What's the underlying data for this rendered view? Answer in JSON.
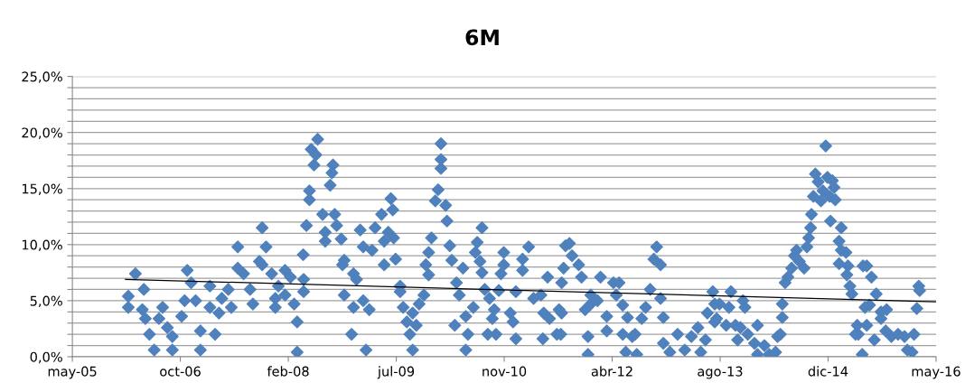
{
  "chart_data": {
    "type": "scatter",
    "title": "6M",
    "xlim": [
      "2005-05-31",
      "2016-05-13"
    ],
    "xticks": [
      {
        "value": "2005-05-31",
        "label": "may-05"
      },
      {
        "value": "2006-10-13",
        "label": "oct-06"
      },
      {
        "value": "2008-02-25",
        "label": "feb-08"
      },
      {
        "value": "2009-07-09",
        "label": "jul-09"
      },
      {
        "value": "2010-11-21",
        "label": "nov-10"
      },
      {
        "value": "2012-04-04",
        "label": "abr-12"
      },
      {
        "value": "2013-08-17",
        "label": "ago-13"
      },
      {
        "value": "2014-12-30",
        "label": "dic-14"
      },
      {
        "value": "2016-05-13",
        "label": "may-16"
      }
    ],
    "ylim": [
      0,
      25
    ],
    "yticks": [
      {
        "value": 0,
        "label": "0,0%"
      },
      {
        "value": 1,
        "label": null
      },
      {
        "value": 2,
        "label": null
      },
      {
        "value": 3,
        "label": null
      },
      {
        "value": 4,
        "label": null
      },
      {
        "value": 5,
        "label": "5,0%"
      },
      {
        "value": 6,
        "label": null
      },
      {
        "value": 7,
        "label": null
      },
      {
        "value": 8,
        "label": null
      },
      {
        "value": 9,
        "label": null
      },
      {
        "value": 10,
        "label": "10,0%"
      },
      {
        "value": 11,
        "label": null
      },
      {
        "value": 12,
        "label": null
      },
      {
        "value": 13,
        "label": null
      },
      {
        "value": 14,
        "label": null
      },
      {
        "value": 15,
        "label": "15,0%"
      },
      {
        "value": 16,
        "label": null
      },
      {
        "value": 17,
        "label": null
      },
      {
        "value": 18,
        "label": null
      },
      {
        "value": 19,
        "label": null
      },
      {
        "value": 20,
        "label": "20,0%"
      },
      {
        "value": 21,
        "label": null
      },
      {
        "value": 22,
        "label": null
      },
      {
        "value": 23,
        "label": null
      },
      {
        "value": 24,
        "label": null
      },
      {
        "value": 25,
        "label": "25,0%"
      }
    ],
    "grid": "y",
    "legend": false,
    "series": [
      {
        "color": "#4f81bd",
        "marker": "diamond",
        "x": [
          "2006-03-19",
          "2006-04-27",
          "2006-02-14",
          "2006-02-14",
          "2006-04-20",
          "2006-05-04",
          "2006-05-23",
          "2006-06-14",
          "2006-07-06",
          "2006-07-23",
          "2006-08-14",
          "2006-09-06",
          "2006-09-06",
          "2006-10-19",
          "2006-11-02",
          "2006-11-14",
          "2006-12-02",
          "2006-12-23",
          "2007-01-14",
          "2007-01-14",
          "2007-02-27",
          "2007-02-27",
          "2007-03-23",
          "2007-04-10",
          "2007-04-23",
          "2007-05-23",
          "2007-06-06",
          "2007-07-06",
          "2007-07-06",
          "2007-08-02",
          "2007-09-01",
          "2007-09-14",
          "2007-10-14",
          "2007-10-27",
          "2007-11-14",
          "2007-10-27",
          "2007-12-10",
          "2008-02-10",
          "2008-03-06",
          "2008-01-10",
          "2008-02-10",
          "2007-12-27",
          "2007-12-27",
          "2008-03-23",
          "2008-05-06",
          "2008-05-06",
          "2008-05-04",
          "2008-04-06",
          "2008-04-06",
          "2008-05-19",
          "2008-06-02",
          "2008-06-02",
          "2008-06-10",
          "2008-07-10",
          "2008-07-02",
          "2008-06-23",
          "2008-09-19",
          "2008-09-14",
          "2008-09-06",
          "2008-08-02",
          "2008-08-14",
          "2008-08-14",
          "2008-09-27",
          "2008-10-06",
          "2008-10-27",
          "2008-11-10",
          "2008-11-02",
          "2008-12-23",
          "2009-01-06",
          "2008-11-10",
          "2008-12-23",
          "2009-02-06",
          "2009-03-06",
          "2008-12-14",
          "2009-02-19",
          "2009-01-23",
          "2009-02-06",
          "2009-03-19",
          "2009-04-02",
          "2009-05-02",
          "2009-06-14",
          "2009-06-23",
          "2009-06-02",
          "2009-06-27",
          "2009-05-14",
          "2009-05-14",
          "2009-07-06",
          "2009-07-27",
          "2009-07-27",
          "2009-08-10",
          "2009-08-27",
          "2009-09-10",
          "2009-09-23",
          "2009-09-23",
          "2009-10-10",
          "2009-10-23",
          "2009-11-14",
          "2009-12-19",
          "2009-12-06",
          "2009-11-23",
          "2009-12-06",
          "2010-01-06",
          "2010-01-19",
          "2010-02-01",
          "2010-02-01",
          "2010-02-01",
          "2010-02-23",
          "2010-03-01",
          "2010-03-14",
          "2010-03-23",
          "2010-04-14",
          "2010-04-27",
          "2010-04-06",
          "2010-05-27",
          "2010-05-14",
          "2010-05-27",
          "2010-06-06",
          "2010-07-01",
          "2010-08-10",
          "2010-07-19",
          "2010-07-10",
          "2010-08-01",
          "2010-08-10",
          "2010-08-23",
          "2010-09-14",
          "2010-09-06",
          "2010-10-06",
          "2010-09-27",
          "2010-10-14",
          "2010-11-19",
          "2010-11-19",
          "2010-11-06",
          "2010-10-27",
          "2010-12-19",
          "2011-01-01",
          "2011-01-14",
          "2011-01-14",
          "2011-02-14",
          "2011-02-14",
          "2011-03-14",
          "2011-04-06",
          "2011-05-10",
          "2011-06-10",
          "2011-05-23",
          "2011-06-19",
          "2011-07-23",
          "2011-05-19",
          "2011-08-02",
          "2011-08-23",
          "2011-09-01",
          "2011-09-19",
          "2011-10-01",
          "2011-11-01",
          "2011-08-14",
          "2011-11-14",
          "2011-08-14",
          "2011-08-10",
          "2011-12-01",
          "2011-12-27",
          "2011-12-27",
          "2012-02-10",
          "2012-01-27",
          "2011-12-14",
          "2011-12-14",
          "2012-03-10",
          "2012-03-10",
          "2012-04-10",
          "2012-05-06",
          "2012-04-23",
          "2012-05-23",
          "2012-06-14",
          "2012-05-23",
          "2012-07-06",
          "2012-07-19",
          "2012-06-06",
          "2012-07-27",
          "2012-09-27",
          "2012-09-06",
          "2012-08-19",
          "2012-10-27",
          "2012-10-14",
          "2012-11-14",
          "2012-11-14",
          "2012-11-27",
          "2012-11-27",
          "2012-12-27",
          "2013-02-01",
          "2013-03-06",
          "2013-04-06",
          "2013-05-06",
          "2013-05-19",
          "2013-06-10",
          "2013-06-19",
          "2013-07-14",
          "2013-07-23",
          "2013-07-23",
          "2013-08-14",
          "2013-08-01",
          "2013-10-06",
          "2013-09-27",
          "2013-09-14",
          "2013-12-01",
          "2013-12-10",
          "2013-10-27",
          "2013-11-19",
          "2013-11-06",
          "2013-12-23",
          "2014-02-06",
          "2014-01-23",
          "2014-02-06",
          "2014-03-10",
          "2014-04-01",
          "2014-05-01",
          "2014-05-10",
          "2014-05-23",
          "2014-06-01",
          "2014-06-01",
          "2014-06-14",
          "2014-06-27",
          "2014-07-14",
          "2014-07-27",
          "2014-08-06",
          "2014-08-19",
          "2014-09-10",
          "2014-09-23",
          "2014-10-01",
          "2014-10-10",
          "2014-10-14",
          "2014-10-23",
          "2014-11-01",
          "2014-11-14",
          "2014-11-27",
          "2014-12-06",
          "2014-12-19",
          "2014-12-27",
          "2015-01-06",
          "2015-01-27",
          "2015-02-01",
          "2015-01-19",
          "2015-01-10",
          "2015-03-01",
          "2015-02-19",
          "2015-03-01",
          "2015-03-23",
          "2015-02-19",
          "2015-04-01",
          "2015-03-27",
          "2015-04-10",
          "2015-04-19",
          "2015-06-10",
          "2015-06-19",
          "2015-05-14",
          "2015-05-19",
          "2015-06-06",
          "2015-06-27",
          "2015-07-19",
          "2015-08-10",
          "2015-07-10",
          "2015-09-01",
          "2015-09-27",
          "2015-09-01",
          "2015-06-27",
          "2015-05-06",
          "2015-08-01",
          "2015-09-23",
          "2015-10-19",
          "2015-11-19",
          "2015-12-19",
          "2016-01-01",
          "2016-01-23",
          "2016-02-01",
          "2016-02-14",
          "2016-02-23",
          "2016-02-27"
        ],
        "values": [
          7.4,
          6.0,
          5.4,
          4.4,
          4.2,
          3.4,
          2.0,
          0.6,
          3.4,
          4.4,
          2.6,
          1.8,
          0.6,
          3.6,
          5.0,
          7.7,
          6.6,
          5.0,
          2.3,
          0.6,
          6.3,
          4.4,
          2.0,
          3.9,
          5.2,
          6.0,
          4.4,
          9.8,
          7.9,
          7.4,
          6.0,
          4.7,
          8.5,
          11.5,
          9.8,
          8.2,
          7.4,
          7.7,
          7.1,
          6.3,
          5.5,
          5.2,
          4.4,
          4.7,
          6.9,
          5.8,
          9.1,
          3.1,
          0.4,
          11.7,
          14.0,
          14.8,
          18.5,
          19.4,
          18.0,
          17.1,
          17.1,
          16.4,
          15.3,
          12.7,
          11.1,
          10.3,
          12.7,
          11.7,
          10.5,
          8.6,
          8.2,
          7.4,
          6.9,
          5.5,
          4.4,
          5.0,
          4.2,
          2.0,
          0.6,
          11.3,
          9.8,
          9.5,
          11.5,
          12.7,
          14.1,
          13.1,
          11.1,
          10.6,
          10.3,
          8.2,
          8.7,
          6.3,
          5.8,
          4.4,
          3.1,
          2.0,
          0.6,
          3.9,
          2.8,
          4.7,
          5.5,
          10.6,
          9.3,
          8.2,
          7.3,
          13.9,
          14.9,
          16.8,
          17.6,
          19.0,
          13.5,
          12.1,
          9.9,
          8.6,
          6.6,
          5.5,
          2.8,
          3.6,
          7.9,
          0.6,
          2.0,
          4.4,
          11.5,
          10.2,
          9.3,
          8.5,
          7.5,
          6.0,
          5.2,
          2.0,
          4.2,
          3.4,
          2.0,
          9.3,
          8.2,
          7.4,
          5.9,
          3.9,
          3.1,
          1.6,
          5.8,
          8.7,
          7.7,
          9.8,
          5.2,
          5.5,
          7.1,
          3.9,
          3.4,
          2.0,
          1.6,
          4.2,
          7.9,
          9.9,
          10.1,
          9.0,
          8.2,
          6.6,
          7.1,
          3.9,
          2.0,
          4.2,
          4.7,
          5.5,
          7.1,
          5.0,
          1.8,
          0.2,
          3.6,
          2.3,
          6.6,
          6.6,
          5.5,
          4.6,
          3.5,
          2.0,
          1.8,
          2.0,
          0.4,
          0.2,
          6.0,
          4.4,
          3.4,
          9.8,
          8.7,
          8.2,
          5.2,
          3.5,
          1.2,
          0.4,
          2.0,
          0.6,
          1.8,
          2.6,
          0.4,
          1.5,
          3.9,
          5.8,
          4.7,
          3.1,
          4.7,
          3.4,
          5.8,
          4.4,
          2.8,
          5.0,
          4.4,
          2.8,
          2.6,
          1.5,
          2.0,
          2.8,
          1.2,
          0.2,
          1.0,
          0.2,
          0.4,
          1.8,
          2.0,
          3.5,
          4.7,
          6.6,
          7.1,
          7.9,
          9.0,
          9.5,
          8.5,
          7.9,
          9.8,
          10.6,
          11.5,
          12.7,
          14.3,
          16.3,
          15.6,
          13.9,
          14.8,
          18.8,
          16.0,
          14.3,
          15.1,
          14.0,
          15.7,
          12.1,
          11.5,
          10.3,
          9.5,
          9.3,
          8.3,
          8.1,
          7.3,
          6.3,
          5.6,
          8.1,
          4.4,
          2.8,
          2.0,
          0.2,
          8.1,
          7.1,
          5.6,
          4.6,
          4.0,
          4.2,
          3.4,
          2.8,
          2.0,
          1.5,
          2.3,
          1.8,
          2.0,
          1.8,
          0.6,
          0.4,
          2.0,
          4.3,
          6.3,
          5.9
        ]
      },
      {
        "type": "line",
        "marker": "none",
        "color": "#000000",
        "x": [
          "2006-02-01",
          "2016-05-13"
        ],
        "values": [
          6.9,
          4.9
        ]
      }
    ]
  }
}
